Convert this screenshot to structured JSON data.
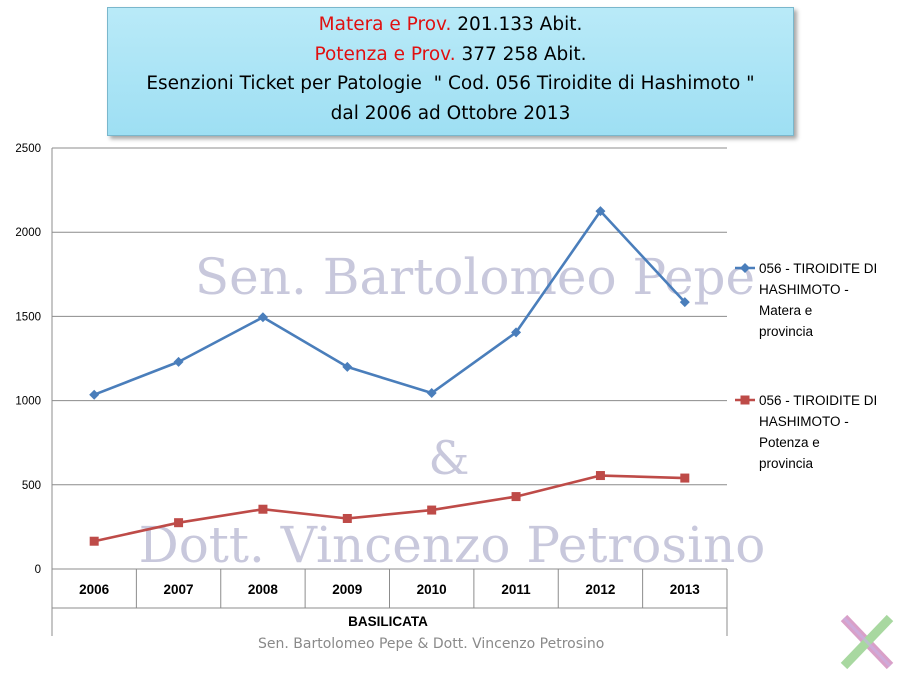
{
  "header": {
    "line1_red": "Matera e Prov.",
    "line1_black": " 201.133 Abit.",
    "line2_red": "Potenza e Prov.",
    "line2_black": " 377 258 Abit.",
    "line3": "Esenzioni Ticket per Patologie  \" Cod. 056 Tiroidite di Hashimoto \"",
    "line4": "dal 2006 ad Ottobre 2013"
  },
  "watermark": {
    "line1": "Sen. Bartolomeo Pepe",
    "line2": "&",
    "line3": "Dott. Vincenzo Petrosino"
  },
  "footer": "Sen. Bartolomeo  Pepe & Dott. Vincenzo  Petrosino",
  "colors": {
    "series1": "#4a7ebb",
    "series2": "#be4b48",
    "title_bg": "#a8e4f5"
  },
  "chart_data": {
    "type": "line",
    "xlabel": "BASILICATA",
    "ylabel": "",
    "ylim": [
      0,
      2500
    ],
    "yticks": [
      0,
      500,
      1000,
      1500,
      2000,
      2500
    ],
    "grid": true,
    "legend_position": "right",
    "categories": [
      "2006",
      "2007",
      "2008",
      "2009",
      "2010",
      "2011",
      "2012",
      "2013"
    ],
    "series": [
      {
        "name": "056 - TIROIDITE DI HASHIMOTO - Matera e provincia",
        "legend_lines": [
          "056 - TIROIDITE DI",
          "HASHIMOTO -",
          "Matera e",
          "provincia"
        ],
        "marker": "diamond",
        "values": [
          1035,
          1230,
          1495,
          1200,
          1045,
          1405,
          2125,
          1585
        ]
      },
      {
        "name": "056 - TIROIDITE DI HASHIMOTO - Potenza e provincia",
        "legend_lines": [
          "056 - TIROIDITE DI",
          "HASHIMOTO -",
          "Potenza e",
          "provincia"
        ],
        "marker": "square",
        "values": [
          165,
          275,
          355,
          300,
          350,
          430,
          555,
          540
        ]
      }
    ]
  }
}
